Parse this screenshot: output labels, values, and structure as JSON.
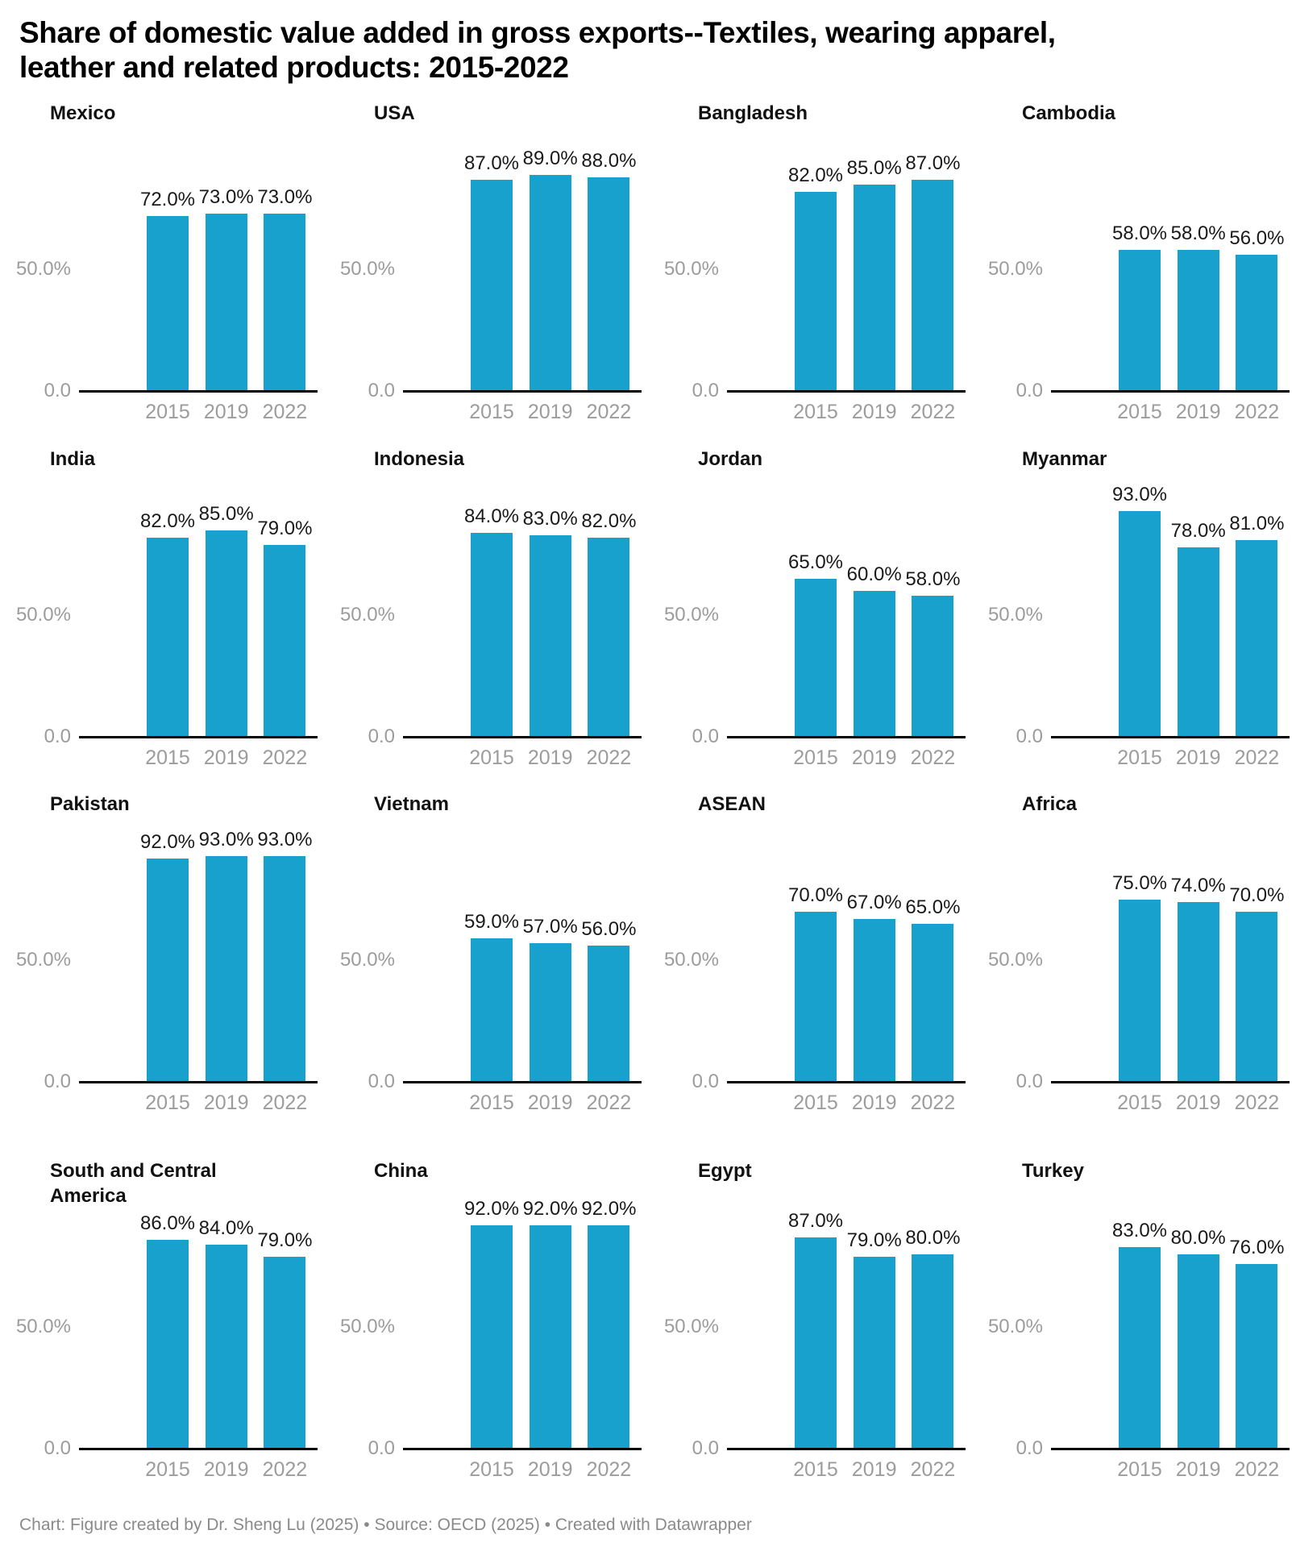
{
  "title": {
    "line1": "Share of domestic value added in gross exports--Textiles, wearing apparel,",
    "line2": "leather and related products: 2015-2022"
  },
  "footer": {
    "chart_credit": "Chart: Figure created by Dr. Sheng Lu (2025)",
    "source": "Source: OECD (2025)",
    "tool": "Created with Datawrapper",
    "separator": " • "
  },
  "colors": {
    "bar": "#18a1cd",
    "axis_line": "#000000",
    "label_gray": "#9c9c9c",
    "value_text": "#1a1a1a",
    "footer_gray": "#8a8a8a",
    "title_black": "#000000"
  },
  "chart_data": {
    "type": "bar",
    "layout": "small-multiples-4x4",
    "title": "Share of domestic value added in gross exports--Textiles, wearing apparel, leather and related products: 2015-2022",
    "xlabel": "",
    "ylabel": "",
    "ylim": [
      0,
      100
    ],
    "grid": "off",
    "y_tick_labels": [
      "0.0",
      "50.0%"
    ],
    "categories": [
      "2015",
      "2019",
      "2022"
    ],
    "value_label_format": "one decimal + %",
    "series": [
      {
        "name": "Mexico",
        "values": [
          72,
          73,
          73
        ],
        "value_labels": [
          "72.0%",
          "73.0%",
          "73.0%"
        ]
      },
      {
        "name": "USA",
        "values": [
          87,
          89,
          88
        ],
        "value_labels": [
          "87.0%",
          "89.0%",
          "88.0%"
        ]
      },
      {
        "name": "Bangladesh",
        "values": [
          82,
          85,
          87
        ],
        "value_labels": [
          "82.0%",
          "85.0%",
          "87.0%"
        ]
      },
      {
        "name": "Cambodia",
        "values": [
          58,
          58,
          56
        ],
        "value_labels": [
          "58.0%",
          "58.0%",
          "56.0%"
        ]
      },
      {
        "name": "India",
        "values": [
          82,
          85,
          79
        ],
        "value_labels": [
          "82.0%",
          "85.0%",
          "79.0%"
        ]
      },
      {
        "name": "Indonesia",
        "values": [
          84,
          83,
          82
        ],
        "value_labels": [
          "84.0%",
          "83.0%",
          "82.0%"
        ]
      },
      {
        "name": "Jordan",
        "values": [
          65,
          60,
          58
        ],
        "value_labels": [
          "65.0%",
          "60.0%",
          "58.0%"
        ]
      },
      {
        "name": "Myanmar",
        "values": [
          93,
          78,
          81
        ],
        "value_labels": [
          "93.0%",
          "78.0%",
          "81.0%"
        ]
      },
      {
        "name": "Pakistan",
        "values": [
          92,
          93,
          93
        ],
        "value_labels": [
          "92.0%",
          "93.0%",
          "93.0%"
        ]
      },
      {
        "name": "Vietnam",
        "values": [
          59,
          57,
          56
        ],
        "value_labels": [
          "59.0%",
          "57.0%",
          "56.0%"
        ]
      },
      {
        "name": "ASEAN",
        "values": [
          70,
          67,
          65
        ],
        "value_labels": [
          "70.0%",
          "67.0%",
          "65.0%"
        ]
      },
      {
        "name": "Africa",
        "values": [
          75,
          74,
          70
        ],
        "value_labels": [
          "75.0%",
          "74.0%",
          "70.0%"
        ]
      },
      {
        "name": "South and Central America",
        "values": [
          86,
          84,
          79
        ],
        "value_labels": [
          "86.0%",
          "84.0%",
          "79.0%"
        ]
      },
      {
        "name": "China",
        "values": [
          92,
          92,
          92
        ],
        "value_labels": [
          "92.0%",
          "92.0%",
          "92.0%"
        ]
      },
      {
        "name": "Egypt",
        "values": [
          87,
          79,
          80
        ],
        "value_labels": [
          "87.0%",
          "79.0%",
          "80.0%"
        ]
      },
      {
        "name": "Turkey",
        "values": [
          83,
          80,
          76
        ],
        "value_labels": [
          "83.0%",
          "80.0%",
          "76.0%"
        ]
      }
    ]
  }
}
